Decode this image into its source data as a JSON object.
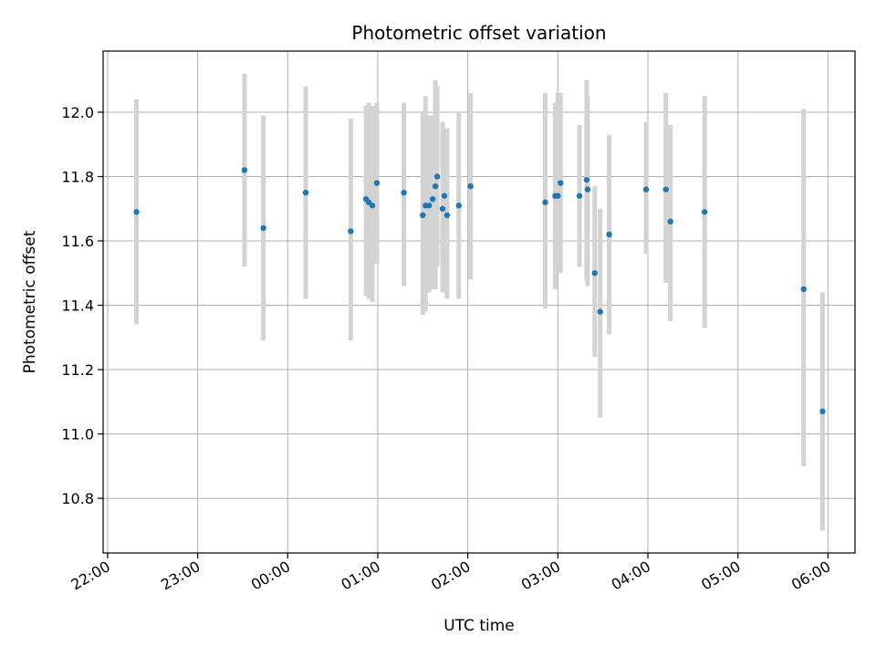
{
  "chart_data": {
    "type": "scatter",
    "title": "Photometric offset variation",
    "xlabel": "UTC time",
    "ylabel": "Photometric offset",
    "x_unit": "hours since 22:00 UTC",
    "xlim": [
      -0.05,
      8.3
    ],
    "ylim": [
      10.63,
      12.19
    ],
    "x_ticks": [
      {
        "value": 0,
        "label": "22:00"
      },
      {
        "value": 1,
        "label": "23:00"
      },
      {
        "value": 2,
        "label": "00:00"
      },
      {
        "value": 3,
        "label": "01:00"
      },
      {
        "value": 4,
        "label": "02:00"
      },
      {
        "value": 5,
        "label": "03:00"
      },
      {
        "value": 6,
        "label": "04:00"
      },
      {
        "value": 7,
        "label": "05:00"
      },
      {
        "value": 8,
        "label": "06:00"
      }
    ],
    "y_ticks": [
      {
        "value": 10.8,
        "label": "10.8"
      },
      {
        "value": 11.0,
        "label": "11.0"
      },
      {
        "value": 11.2,
        "label": "11.2"
      },
      {
        "value": 11.4,
        "label": "11.4"
      },
      {
        "value": 11.6,
        "label": "11.6"
      },
      {
        "value": 11.8,
        "label": "11.8"
      },
      {
        "value": 12.0,
        "label": "12.0"
      }
    ],
    "grid": true,
    "marker_color": "#1f77b4",
    "errorbar_color": "#d3d3d3",
    "points": [
      {
        "x": 0.32,
        "y": 11.69,
        "low": 11.34,
        "high": 12.04
      },
      {
        "x": 1.52,
        "y": 11.82,
        "low": 11.52,
        "high": 12.12
      },
      {
        "x": 1.73,
        "y": 11.64,
        "low": 11.29,
        "high": 11.99
      },
      {
        "x": 2.2,
        "y": 11.75,
        "low": 11.42,
        "high": 12.08
      },
      {
        "x": 2.7,
        "y": 11.63,
        "low": 11.29,
        "high": 11.98
      },
      {
        "x": 2.87,
        "y": 11.73,
        "low": 11.43,
        "high": 12.02
      },
      {
        "x": 2.9,
        "y": 11.72,
        "low": 11.42,
        "high": 12.03
      },
      {
        "x": 2.94,
        "y": 11.71,
        "low": 11.41,
        "high": 12.02
      },
      {
        "x": 2.99,
        "y": 11.78,
        "low": 11.53,
        "high": 12.03
      },
      {
        "x": 3.29,
        "y": 11.75,
        "low": 11.46,
        "high": 12.03
      },
      {
        "x": 3.5,
        "y": 11.68,
        "low": 11.37,
        "high": 12.0
      },
      {
        "x": 3.53,
        "y": 11.71,
        "low": 11.38,
        "high": 12.05
      },
      {
        "x": 3.57,
        "y": 11.71,
        "low": 11.44,
        "high": 11.99
      },
      {
        "x": 3.61,
        "y": 11.73,
        "low": 11.45,
        "high": 11.99
      },
      {
        "x": 3.64,
        "y": 11.77,
        "low": 11.45,
        "high": 12.1
      },
      {
        "x": 3.66,
        "y": 11.8,
        "low": 11.52,
        "high": 12.08
      },
      {
        "x": 3.72,
        "y": 11.7,
        "low": 11.44,
        "high": 11.97
      },
      {
        "x": 3.74,
        "y": 11.74,
        "low": 11.44,
        "high": 11.94
      },
      {
        "x": 3.77,
        "y": 11.68,
        "low": 11.42,
        "high": 11.95
      },
      {
        "x": 3.9,
        "y": 11.71,
        "low": 11.42,
        "high": 12.0
      },
      {
        "x": 4.03,
        "y": 11.77,
        "low": 11.48,
        "high": 12.06
      },
      {
        "x": 4.86,
        "y": 11.72,
        "low": 11.39,
        "high": 12.06
      },
      {
        "x": 4.97,
        "y": 11.74,
        "low": 11.45,
        "high": 12.03
      },
      {
        "x": 5.0,
        "y": 11.74,
        "low": 11.51,
        "high": 12.06
      },
      {
        "x": 5.03,
        "y": 11.78,
        "low": 11.5,
        "high": 12.06
      },
      {
        "x": 5.24,
        "y": 11.74,
        "low": 11.52,
        "high": 11.96
      },
      {
        "x": 5.32,
        "y": 11.79,
        "low": 11.48,
        "high": 12.1
      },
      {
        "x": 5.33,
        "y": 11.76,
        "low": 11.46,
        "high": 12.05
      },
      {
        "x": 5.41,
        "y": 11.5,
        "low": 11.24,
        "high": 11.77
      },
      {
        "x": 5.47,
        "y": 11.38,
        "low": 11.05,
        "high": 11.7
      },
      {
        "x": 5.57,
        "y": 11.62,
        "low": 11.31,
        "high": 11.93
      },
      {
        "x": 5.98,
        "y": 11.76,
        "low": 11.56,
        "high": 11.97
      },
      {
        "x": 6.2,
        "y": 11.76,
        "low": 11.47,
        "high": 12.06
      },
      {
        "x": 6.25,
        "y": 11.66,
        "low": 11.35,
        "high": 11.96
      },
      {
        "x": 6.63,
        "y": 11.69,
        "low": 11.33,
        "high": 12.05
      },
      {
        "x": 7.73,
        "y": 11.45,
        "low": 10.9,
        "high": 12.01
      },
      {
        "x": 7.94,
        "y": 11.07,
        "low": 10.7,
        "high": 11.44
      }
    ]
  }
}
